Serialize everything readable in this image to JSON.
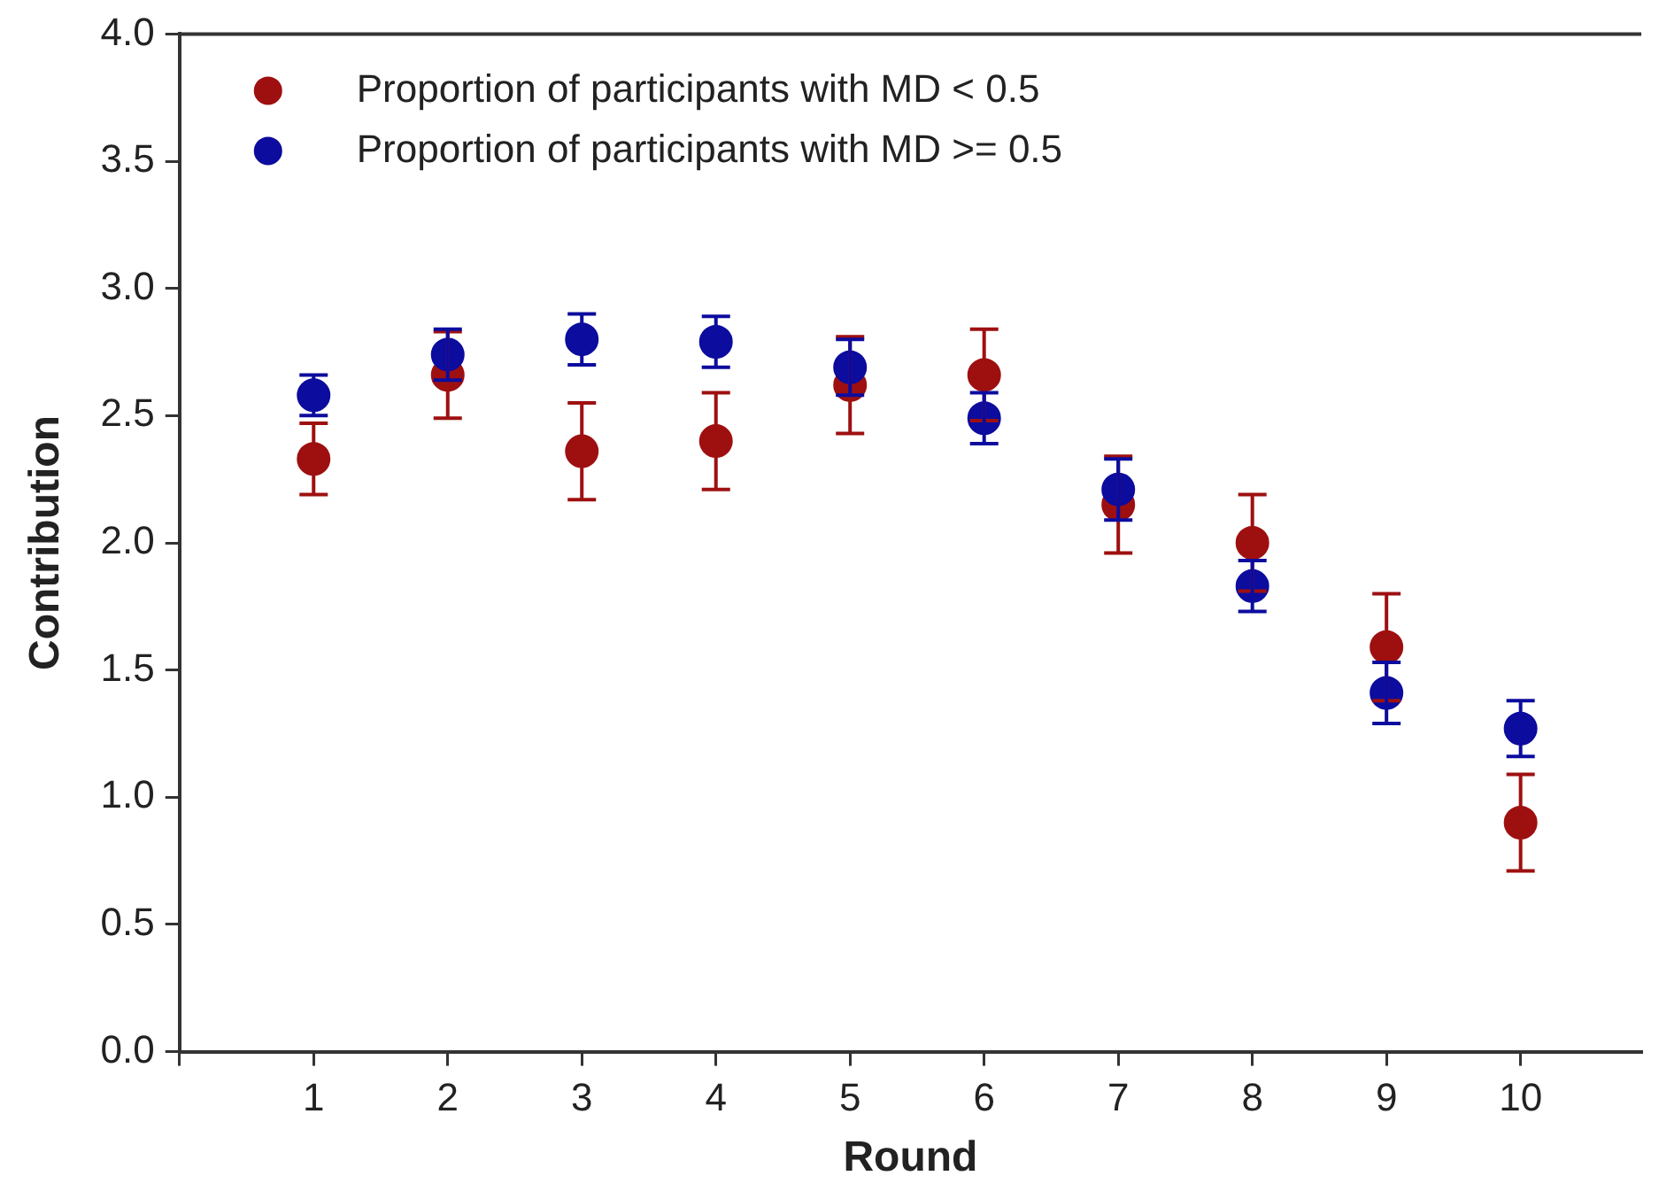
{
  "chart_data": {
    "type": "scatter",
    "xlabel": "Round",
    "ylabel": "Contribution",
    "x": [
      1,
      2,
      3,
      4,
      5,
      6,
      7,
      8,
      9,
      10
    ],
    "series": [
      {
        "name": "Proportion of participants with MD < 0.5",
        "color": "#9e1010",
        "values": [
          2.33,
          2.66,
          2.36,
          2.4,
          2.62,
          2.66,
          2.15,
          2.0,
          1.59,
          0.9
        ],
        "errors": [
          0.14,
          0.17,
          0.19,
          0.19,
          0.19,
          0.18,
          0.19,
          0.19,
          0.21,
          0.19
        ]
      },
      {
        "name": "Proportion of participants with MD >= 0.5",
        "color": "#0c0c9e",
        "values": [
          2.58,
          2.74,
          2.8,
          2.79,
          2.69,
          2.49,
          2.21,
          1.83,
          1.41,
          1.27
        ],
        "errors": [
          0.08,
          0.1,
          0.1,
          0.1,
          0.11,
          0.1,
          0.12,
          0.1,
          0.12,
          0.11
        ]
      }
    ],
    "xlim": [
      0,
      10.9
    ],
    "xticks": [
      {
        "value": 0,
        "label": null
      },
      1,
      2,
      3,
      4,
      5,
      6,
      7,
      8,
      9,
      10
    ],
    "ylim": [
      0,
      4
    ],
    "yticks": [
      {
        "value": 0,
        "label": "0.0"
      },
      0.5,
      {
        "value": 1,
        "label": "1.0"
      },
      1.5,
      {
        "value": 2,
        "label": "2.0"
      },
      2.5,
      {
        "value": 3,
        "label": "3.0"
      },
      3.5,
      {
        "value": 4,
        "label": "4.0"
      }
    ],
    "grid": false,
    "legend": "top left",
    "marker": "circle"
  }
}
